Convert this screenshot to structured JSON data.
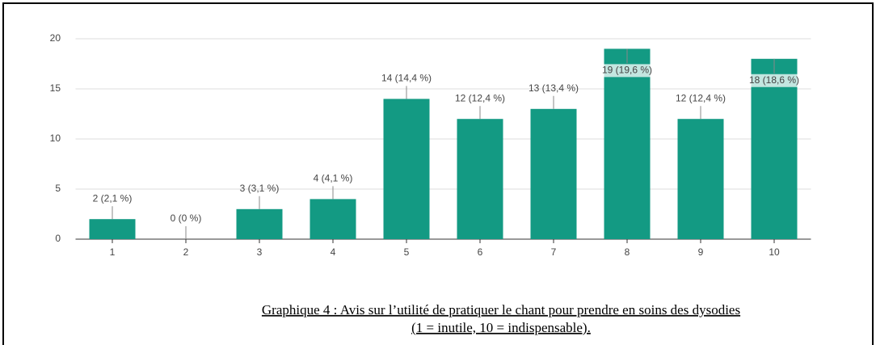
{
  "chart_data": {
    "type": "bar",
    "categories": [
      "1",
      "2",
      "3",
      "4",
      "5",
      "6",
      "7",
      "8",
      "9",
      "10"
    ],
    "values": [
      2,
      0,
      3,
      4,
      14,
      12,
      13,
      19,
      12,
      18
    ],
    "value_labels": [
      "2 (2,1 %)",
      "0 (0 %)",
      "3 (3,1 %)",
      "4 (4,1 %)",
      "14 (14,4 %)",
      "12 (12,4 %)",
      "13 (13,4 %)",
      "19 (19,6 %)",
      "12 (12,4 %)",
      "18 (18,6 %)"
    ],
    "color": "#139a83",
    "ylim": [
      0,
      20
    ],
    "yticks": [
      0,
      5,
      10,
      15,
      20
    ],
    "grid": true,
    "caption": [
      "Graphique 4 : Avis sur l’utilité de pratiquer le chant pour prendre en soins des dysodies",
      "(1 = inutile, 10 = indispensable)."
    ]
  }
}
